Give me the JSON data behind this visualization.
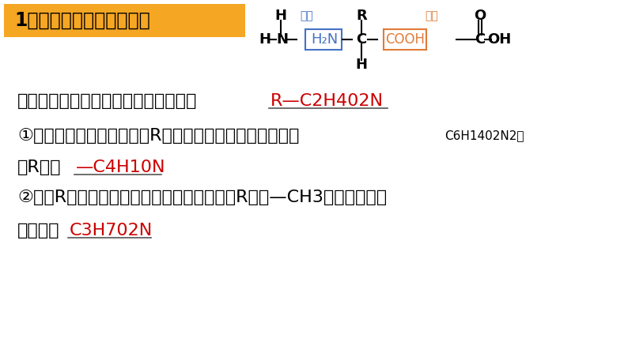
{
  "title": "1、氨基酸原子数目的计算",
  "title_bg": "#F5A623",
  "title_text_color": "#000000",
  "bg_color": "#FFFFFF",
  "section_basis_label": "「依据」氨基酸的结构通式可以简写为",
  "section_basis_label2": "【依据】氨基酸的结构通式可以简写为",
  "basis_formula": "R—C2H402N",
  "answer_color": "#CC0000",
  "struct_color_amine_box": "#4472C4",
  "struct_color_carboxyl_box": "#E07B39",
  "struct_label_amine": "氨基",
  "struct_label_carboxyl": "罧基",
  "q1_main": "①已知氨基酸分子式，推测R基的组成：如某氨基酸分子式",
  "q1_formula_inline": "C6H1402N2，",
  "q1_line2": "则R基为",
  "q1_answer": "—C4H10N",
  "q2_main": "②已知R基，写出氨基酸的分子式：丙氨酸的R基为—CH3，则丙氨酸的",
  "q2_line2": "分子式为",
  "q2_answer": "C3H702N",
  "main_fontsize": 16,
  "small_fontsize": 10,
  "struct_fontsize": 13
}
